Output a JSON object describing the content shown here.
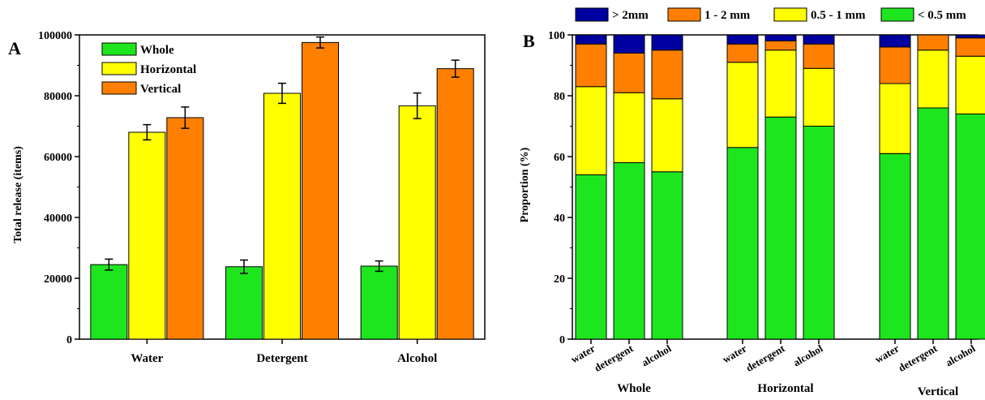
{
  "chart_data": [
    {
      "panel_label": "A",
      "type": "bar",
      "categories": [
        "Water",
        "Detergent",
        "Alcohol"
      ],
      "series": [
        {
          "name": "Whole",
          "values": [
            24500,
            23800,
            24000
          ],
          "errors": [
            1800,
            2200,
            1700
          ],
          "color": "#1ee61e"
        },
        {
          "name": "Horizontal",
          "values": [
            68000,
            80800,
            76700
          ],
          "errors": [
            2500,
            3300,
            4200
          ],
          "color": "#ffff00"
        },
        {
          "name": "Vertical",
          "values": [
            72800,
            97500,
            88900
          ],
          "errors": [
            3500,
            1800,
            2800
          ],
          "color": "#ff8000"
        }
      ],
      "ylabel": "Total release (items)",
      "ylim": [
        0,
        100000
      ],
      "yticks": [
        0,
        20000,
        40000,
        60000,
        80000,
        100000
      ],
      "legend": "top-left"
    },
    {
      "panel_label": "B",
      "type": "bar",
      "stacked": true,
      "groups": [
        {
          "name": "Whole",
          "categories": [
            "water",
            "detergent",
            "alcohol"
          ]
        },
        {
          "name": "Horizontal",
          "categories": [
            "water",
            "detergent",
            "alcohol"
          ]
        },
        {
          "name": "Vertical",
          "categories": [
            "water",
            "detergent",
            "alcohol"
          ]
        }
      ],
      "series": [
        {
          "name": "< 0.5 mm",
          "values": [
            54,
            58,
            55,
            63,
            73,
            70,
            61,
            76,
            74
          ],
          "color": "#1ee61e"
        },
        {
          "name": "0.5 - 1 mm",
          "values": [
            29,
            23,
            24,
            28,
            22,
            19,
            23,
            19,
            19
          ],
          "color": "#ffff00"
        },
        {
          "name": "1 - 2 mm",
          "values": [
            14,
            13,
            16,
            6,
            3,
            8,
            12,
            5,
            6
          ],
          "color": "#ff8000"
        },
        {
          "name": "> 2mm",
          "values": [
            3,
            6,
            5,
            3,
            2,
            3,
            4,
            0,
            1
          ],
          "color": "#0000a0"
        }
      ],
      "ylabel": "Proportion (%)",
      "ylim": [
        0,
        100
      ],
      "yticks": [
        0,
        20,
        40,
        60,
        80,
        100
      ],
      "legend": "top"
    }
  ]
}
